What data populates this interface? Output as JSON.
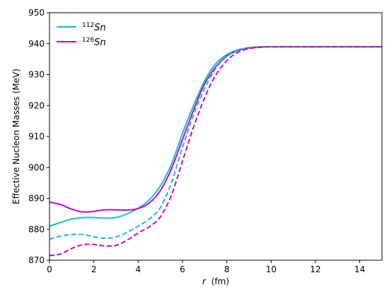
{
  "chart_data": {
    "type": "line",
    "xlabel_var": "r",
    "xlabel_unit": "(fm)",
    "ylabel": "Effective Nucleon Masses (MeV)",
    "xlim": [
      0,
      15
    ],
    "ylim": [
      870,
      950
    ],
    "xticks": [
      0,
      2,
      4,
      6,
      8,
      10,
      12,
      14
    ],
    "yticks": [
      870,
      880,
      890,
      900,
      910,
      920,
      930,
      940,
      950
    ],
    "grid": false,
    "legend_position": "top-left",
    "legend": [
      {
        "sup": "112",
        "text": "Sn",
        "color": "#17becf"
      },
      {
        "sup": "126",
        "text": "Sn",
        "color": "#c20bc8"
      }
    ],
    "series": [
      {
        "nucleus": "112Sn",
        "style": "solid",
        "color": "#17becf",
        "x": [
          0,
          0.5,
          1,
          1.5,
          2,
          2.5,
          3,
          3.5,
          4,
          4.5,
          5,
          5.5,
          6,
          6.5,
          7,
          7.5,
          8,
          8.5,
          9,
          9.5,
          10,
          11,
          12,
          13,
          14,
          15
        ],
        "y": [
          881,
          882.2,
          883.3,
          883.8,
          883.8,
          883.6,
          883.8,
          885,
          886.8,
          889.5,
          894,
          901,
          911,
          920,
          928,
          933.5,
          936.5,
          938,
          938.7,
          939,
          939,
          939,
          939,
          939,
          939,
          939
        ]
      },
      {
        "nucleus": "126Sn",
        "style": "solid",
        "color": "#c20bc8",
        "x": [
          0,
          0.5,
          1,
          1.5,
          2,
          2.5,
          3,
          3.5,
          4,
          4.5,
          5,
          5.5,
          6,
          6.5,
          7,
          7.5,
          8,
          8.5,
          9,
          9.5,
          10,
          11,
          12,
          13,
          14,
          15
        ],
        "y": [
          888.8,
          888,
          886.5,
          885.6,
          885.8,
          886.3,
          886.3,
          886.2,
          886.7,
          888.5,
          892.5,
          899.5,
          909,
          918.5,
          927,
          932.5,
          936,
          937.8,
          938.6,
          938.9,
          939,
          939,
          939,
          939,
          939,
          939
        ]
      },
      {
        "nucleus": "112Sn",
        "style": "dashed",
        "color": "#17becf",
        "x": [
          0,
          0.5,
          1,
          1.5,
          2,
          2.5,
          3,
          3.5,
          4,
          4.5,
          5,
          5.5,
          6,
          6.5,
          7,
          7.5,
          8,
          8.5,
          9,
          9.5,
          10,
          11,
          12,
          13,
          14,
          15
        ],
        "y": [
          876.8,
          877.8,
          878.3,
          878.3,
          877.6,
          877.1,
          877.5,
          879,
          881,
          883.3,
          887,
          895,
          906.5,
          917,
          925.5,
          932,
          935.8,
          937.8,
          938.6,
          938.9,
          939,
          939,
          939,
          939,
          939,
          939
        ]
      },
      {
        "nucleus": "126Sn",
        "style": "dashed",
        "color": "#c20bc8",
        "x": [
          0,
          0.5,
          1,
          1.5,
          2,
          2.5,
          3,
          3.5,
          4,
          4.5,
          5,
          5.5,
          6,
          6.5,
          7,
          7.5,
          8,
          8.5,
          9,
          9.5,
          10,
          11,
          12,
          13,
          14,
          15
        ],
        "y": [
          871.5,
          872,
          873.8,
          875,
          875.1,
          874.6,
          874.8,
          876.5,
          878.8,
          880.8,
          884,
          891,
          902,
          913,
          922.5,
          929.8,
          934.5,
          937.2,
          938.4,
          938.8,
          939,
          939,
          939,
          939,
          939,
          939
        ]
      }
    ]
  }
}
